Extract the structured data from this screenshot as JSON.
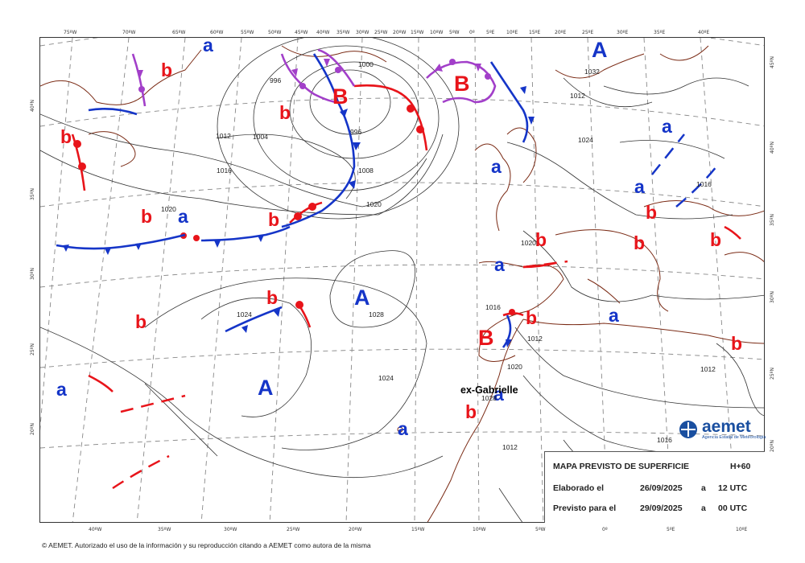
{
  "map": {
    "pressure_systems": [
      {
        "letter": "A",
        "type": "high",
        "color": "blue"
      },
      {
        "letter": "A",
        "type": "high",
        "color": "blue"
      },
      {
        "letter": "A",
        "type": "high",
        "color": "blue"
      },
      {
        "letter": "B",
        "type": "low",
        "color": "red"
      },
      {
        "letter": "B",
        "type": "low",
        "color": "red"
      },
      {
        "letter": "B",
        "type": "low",
        "color": "red"
      }
    ],
    "secondary_labels": {
      "high": "a",
      "low": "b"
    },
    "storm_label": "ex-Gabrielle",
    "isobar_values": [
      "996",
      "996",
      "1000",
      "1004",
      "1008",
      "1012",
      "1016",
      "1020",
      "1024",
      "1028",
      "1032",
      "1012",
      "1016",
      "1020",
      "1024",
      "1020",
      "1016",
      "1012",
      "1012",
      "1012",
      "1016",
      "1020",
      "1024",
      "1028"
    ],
    "top_ticks": [
      "75ºW",
      "70ºW",
      "65ºW",
      "60ºW",
      "55ºW",
      "50ºW",
      "45ºW",
      "40ºW",
      "35ºW",
      "30ºW",
      "25ºW",
      "20ºW",
      "15ºW",
      "10ºW",
      "5ºW",
      "0º",
      "5ºE",
      "10ºE",
      "15ºE",
      "20ºE",
      "25ºE",
      "30ºE",
      "35ºE",
      "40ºE"
    ],
    "bottom_ticks": [
      "40ºW",
      "35ºW",
      "30ºW",
      "25ºW",
      "20ºW",
      "15ºW",
      "10ºW",
      "5ºW",
      "0º",
      "5ºE",
      "10ºE"
    ],
    "left_ticks": [
      "40ºN",
      "35ºN",
      "30ºN",
      "25ºN",
      "20ºN"
    ],
    "right_ticks": [
      "45ºN",
      "40ºN",
      "35ºN",
      "30ºN",
      "25ºN",
      "20ºN"
    ]
  },
  "info_box": {
    "title": "MAPA PREVISTO DE SUPERFICIE",
    "range": "H+60",
    "made_label": "Elaborado el",
    "made_date": "26/09/2025",
    "made_a": "a",
    "made_time": "12 UTC",
    "valid_label": "Previsto para el",
    "valid_date": "29/09/2025",
    "valid_a": "a",
    "valid_time": "00 UTC"
  },
  "logo": {
    "name": "aemet",
    "subtitle": "Agencia Estatal de Meteorología"
  },
  "footer": "© AEMET. Autorizado el uso de la información y su reproducción citando a AEMET como autora de la misma",
  "colors": {
    "warm_front": "#e8141a",
    "cold_front": "#1535c8",
    "occluded": "#a23fc9",
    "land": "#7a2a14"
  }
}
